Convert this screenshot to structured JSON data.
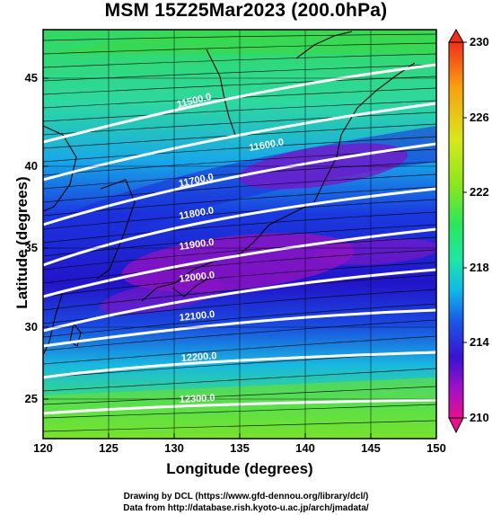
{
  "title": "MSM 15Z25Mar2023 (200.0hPa)",
  "axes": {
    "xlabel": "Longitude (degrees)",
    "ylabel": "Latitude  (degrees)",
    "xticks": [
      "120",
      "125",
      "130",
      "135",
      "140",
      "145",
      "150"
    ],
    "yticks": [
      "25",
      "30",
      "35",
      "40",
      "45"
    ],
    "xlim": [
      120,
      150
    ],
    "ylim": [
      22.5,
      48
    ]
  },
  "colorbar": {
    "ticks": [
      "230",
      "226",
      "222",
      "218",
      "214",
      "210"
    ],
    "range": [
      210,
      230
    ],
    "colors": [
      "#e8108c",
      "#a010c8",
      "#3a12d0",
      "#1a5ae8",
      "#12b8e8",
      "#1ee6a6",
      "#2ee65a",
      "#8ae61e",
      "#d8e81c",
      "#f8a010",
      "#f0301c"
    ]
  },
  "contours": {
    "labels": [
      "11500.0",
      "11600.0",
      "11700.0",
      "11800.0",
      "11900.0",
      "12000.0",
      "12100.0",
      "12200.0",
      "12300.0"
    ],
    "color": "#ffffff"
  },
  "credits": {
    "line1": "Drawing by DCL (https://www.gfd-dennou.org/library/dcl/)",
    "line2": "Data from http://database.rish.kyoto-u.ac.jp/arch/jmadata/"
  }
}
